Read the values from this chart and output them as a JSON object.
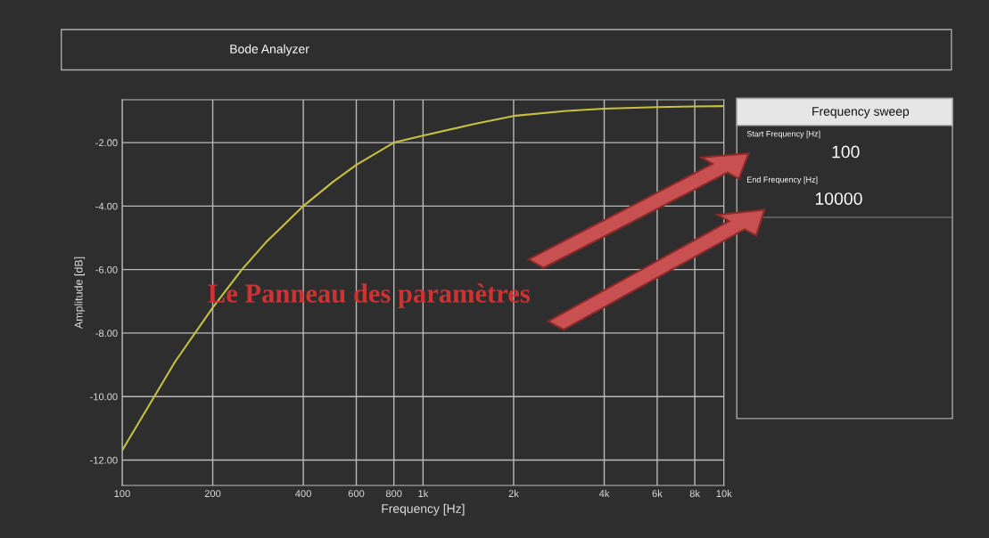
{
  "chart_data": {
    "type": "line",
    "title": "Bode Analyzer",
    "xlabel": "Frequency [Hz]",
    "ylabel": "Amplitude [dB]",
    "x": [
      100,
      150,
      200,
      250,
      300,
      400,
      500,
      600,
      800,
      1000,
      1500,
      2000,
      3000,
      4000,
      6000,
      8000,
      10000
    ],
    "series": [
      {
        "color": "#c8c040",
        "values": [
          -11.7,
          -8.9,
          -7.2,
          -6.0,
          -5.15,
          -4.0,
          -3.25,
          -2.7,
          -2.0,
          -1.78,
          -1.4,
          -1.16,
          -1.0,
          -0.93,
          -0.88,
          -0.86,
          -0.85
        ]
      }
    ],
    "log": "x",
    "xlim": [
      100,
      10000
    ],
    "ylim": [
      -12.8,
      -0.65
    ],
    "xticks": [
      100,
      200,
      400,
      600,
      800,
      {
        "value": 1000,
        "label": "1k"
      },
      {
        "value": 2000,
        "label": "2k"
      },
      {
        "value": 4000,
        "label": "4k"
      },
      {
        "value": 6000,
        "label": "6k"
      },
      {
        "value": 8000,
        "label": "8k"
      },
      {
        "value": 10000,
        "label": "10k"
      }
    ],
    "yticks": [
      {
        "value": -2,
        "label": "-2.00"
      },
      {
        "value": -4,
        "label": "-4.00"
      },
      {
        "value": -6,
        "label": "-6.00"
      },
      {
        "value": -8,
        "label": "-8.00"
      },
      {
        "value": -10,
        "label": "-10.00"
      },
      {
        "value": -12,
        "label": "-12.00"
      }
    ],
    "grid": true,
    "marker": "none",
    "line_style": "solid",
    "annotations": [
      "Le Panneau des paramètres",
      "Frequency sweep",
      "Start Frequency [Hz]",
      "100",
      "End Frequency [Hz]",
      "10000"
    ]
  }
}
